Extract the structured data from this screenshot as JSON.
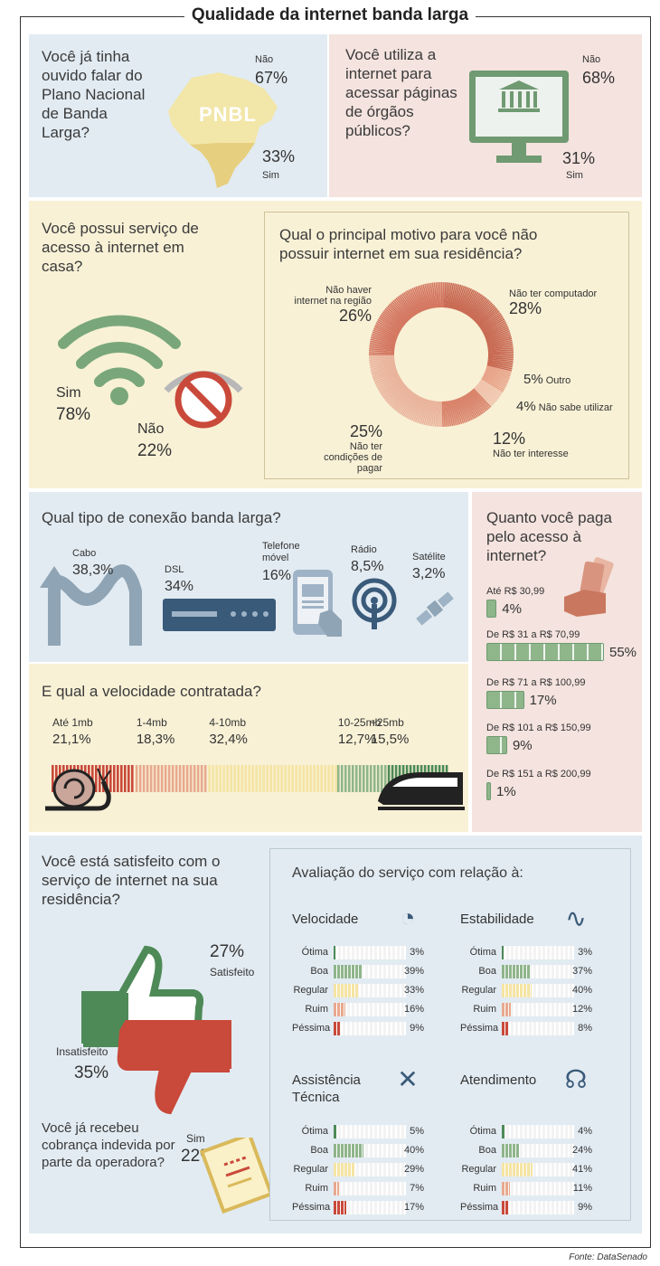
{
  "title": "Qualidade da internet banda larga",
  "pnbl": {
    "question": "Você já tinha ouvido falar do Plano Nacional de Banda Larga?",
    "map_label": "PNBL",
    "no_label": "Não",
    "no_pct": "67%",
    "yes_pct": "33%",
    "yes_label": "Sim"
  },
  "orgaos": {
    "question": "Você utiliza a internet para acessar páginas de órgãos públicos?",
    "no_label": "Não",
    "no_pct": "68%",
    "yes_pct": "31%",
    "yes_label": "Sim"
  },
  "casa": {
    "question": "Você possui serviço de acesso à internet em casa?",
    "yes_label": "Sim",
    "yes_pct": "78%",
    "no_label": "Não",
    "no_pct": "22%"
  },
  "motivo": {
    "question": "Qual o principal motivo para você não possuir internet em sua residência?",
    "items": [
      {
        "label": "Não ter computador",
        "pct": "28%",
        "value": 28,
        "color": "#c96a53"
      },
      {
        "label": "Outro",
        "pct": "5%",
        "value": 5,
        "color": "#e8a48a"
      },
      {
        "label": "Não sabe utilizar",
        "pct": "4%",
        "value": 4,
        "color": "#f0c4ad"
      },
      {
        "label": "Não ter interesse",
        "pct": "12%",
        "value": 12,
        "color": "#d9826a"
      },
      {
        "label": "Não ter condições de pagar",
        "pct": "25%",
        "value": 25,
        "color": "#eab39c"
      },
      {
        "label": "Não haver internet na região",
        "pct": "26%",
        "value": 26,
        "color": "#d47660"
      }
    ]
  },
  "conexao": {
    "question": "Qual tipo de conexão banda larga?",
    "items": [
      {
        "label": "Cabo",
        "pct": "38,3%"
      },
      {
        "label": "DSL",
        "pct": "34%"
      },
      {
        "label": "Telefone móvel",
        "pct": "16%"
      },
      {
        "label": "Rádio",
        "pct": "8,5%"
      },
      {
        "label": "Satélite",
        "pct": "3,2%"
      }
    ]
  },
  "velocidade": {
    "question": "E qual a velocidade contratada?",
    "items": [
      {
        "label": "Até 1mb",
        "pct": "21,1%",
        "value": 21.1,
        "color": "#c9493a"
      },
      {
        "label": "1-4mb",
        "pct": "18,3%",
        "value": 18.3,
        "color": "#e8a98e"
      },
      {
        "label": "4-10mb",
        "pct": "32,4%",
        "value": 32.4,
        "color": "#f5e4a3"
      },
      {
        "label": "10-25mb",
        "pct": "12,7%",
        "value": 12.7,
        "color": "#8fb58b"
      },
      {
        "label": "+25mb",
        "pct": "15,5%",
        "value": 15.5,
        "color": "#4e8a57"
      }
    ]
  },
  "paga": {
    "question": "Quanto você paga pelo acesso à internet?",
    "items": [
      {
        "label": "Até R$ 30,99",
        "pct": "4%",
        "value": 4
      },
      {
        "label": "De R$ 31 a R$ 70,99",
        "pct": "55%",
        "value": 55
      },
      {
        "label": "De R$ 71 a R$ 100,99",
        "pct": "17%",
        "value": 17
      },
      {
        "label": "De R$ 101 a R$ 150,99",
        "pct": "9%",
        "value": 9
      },
      {
        "label": "De R$ 151 a R$ 200,99",
        "pct": "1%",
        "value": 1
      }
    ]
  },
  "satisfeito": {
    "question": "Você está satisfeito com o serviço de internet na sua residência?",
    "sat_pct": "27%",
    "sat_label": "Satisfeito",
    "ins_label": "Insatisfeito",
    "ins_pct": "35%"
  },
  "cobranca": {
    "question": "Você já recebeu cobrança indevida por parte da operadora?",
    "yes_label": "Sim",
    "yes_pct": "22%"
  },
  "avaliacao": {
    "title": "Avaliação do serviço com relação à:",
    "labels": [
      "Ótima",
      "Boa",
      "Regular",
      "Ruim",
      "Péssima"
    ],
    "colors": [
      "#4e8a57",
      "#8fb58b",
      "#f5e4a3",
      "#e8a98e",
      "#c9493a"
    ],
    "groups": [
      {
        "name": "Velocidade",
        "values": [
          3,
          39,
          33,
          16,
          9
        ],
        "pcts": [
          "3%",
          "39%",
          "33%",
          "16%",
          "9%"
        ]
      },
      {
        "name": "Estabilidade",
        "values": [
          3,
          37,
          40,
          12,
          8
        ],
        "pcts": [
          "3%",
          "37%",
          "40%",
          "12%",
          "8%"
        ]
      },
      {
        "name": "Assistência Técnica",
        "values": [
          5,
          40,
          29,
          7,
          17
        ],
        "pcts": [
          "5%",
          "40%",
          "29%",
          "7%",
          "17%"
        ]
      },
      {
        "name": "Atendimento",
        "values": [
          4,
          24,
          41,
          11,
          9
        ],
        "pcts": [
          "4%",
          "24%",
          "41%",
          "11%",
          "9%"
        ]
      }
    ]
  },
  "source": "Fonte: DataSenado"
}
